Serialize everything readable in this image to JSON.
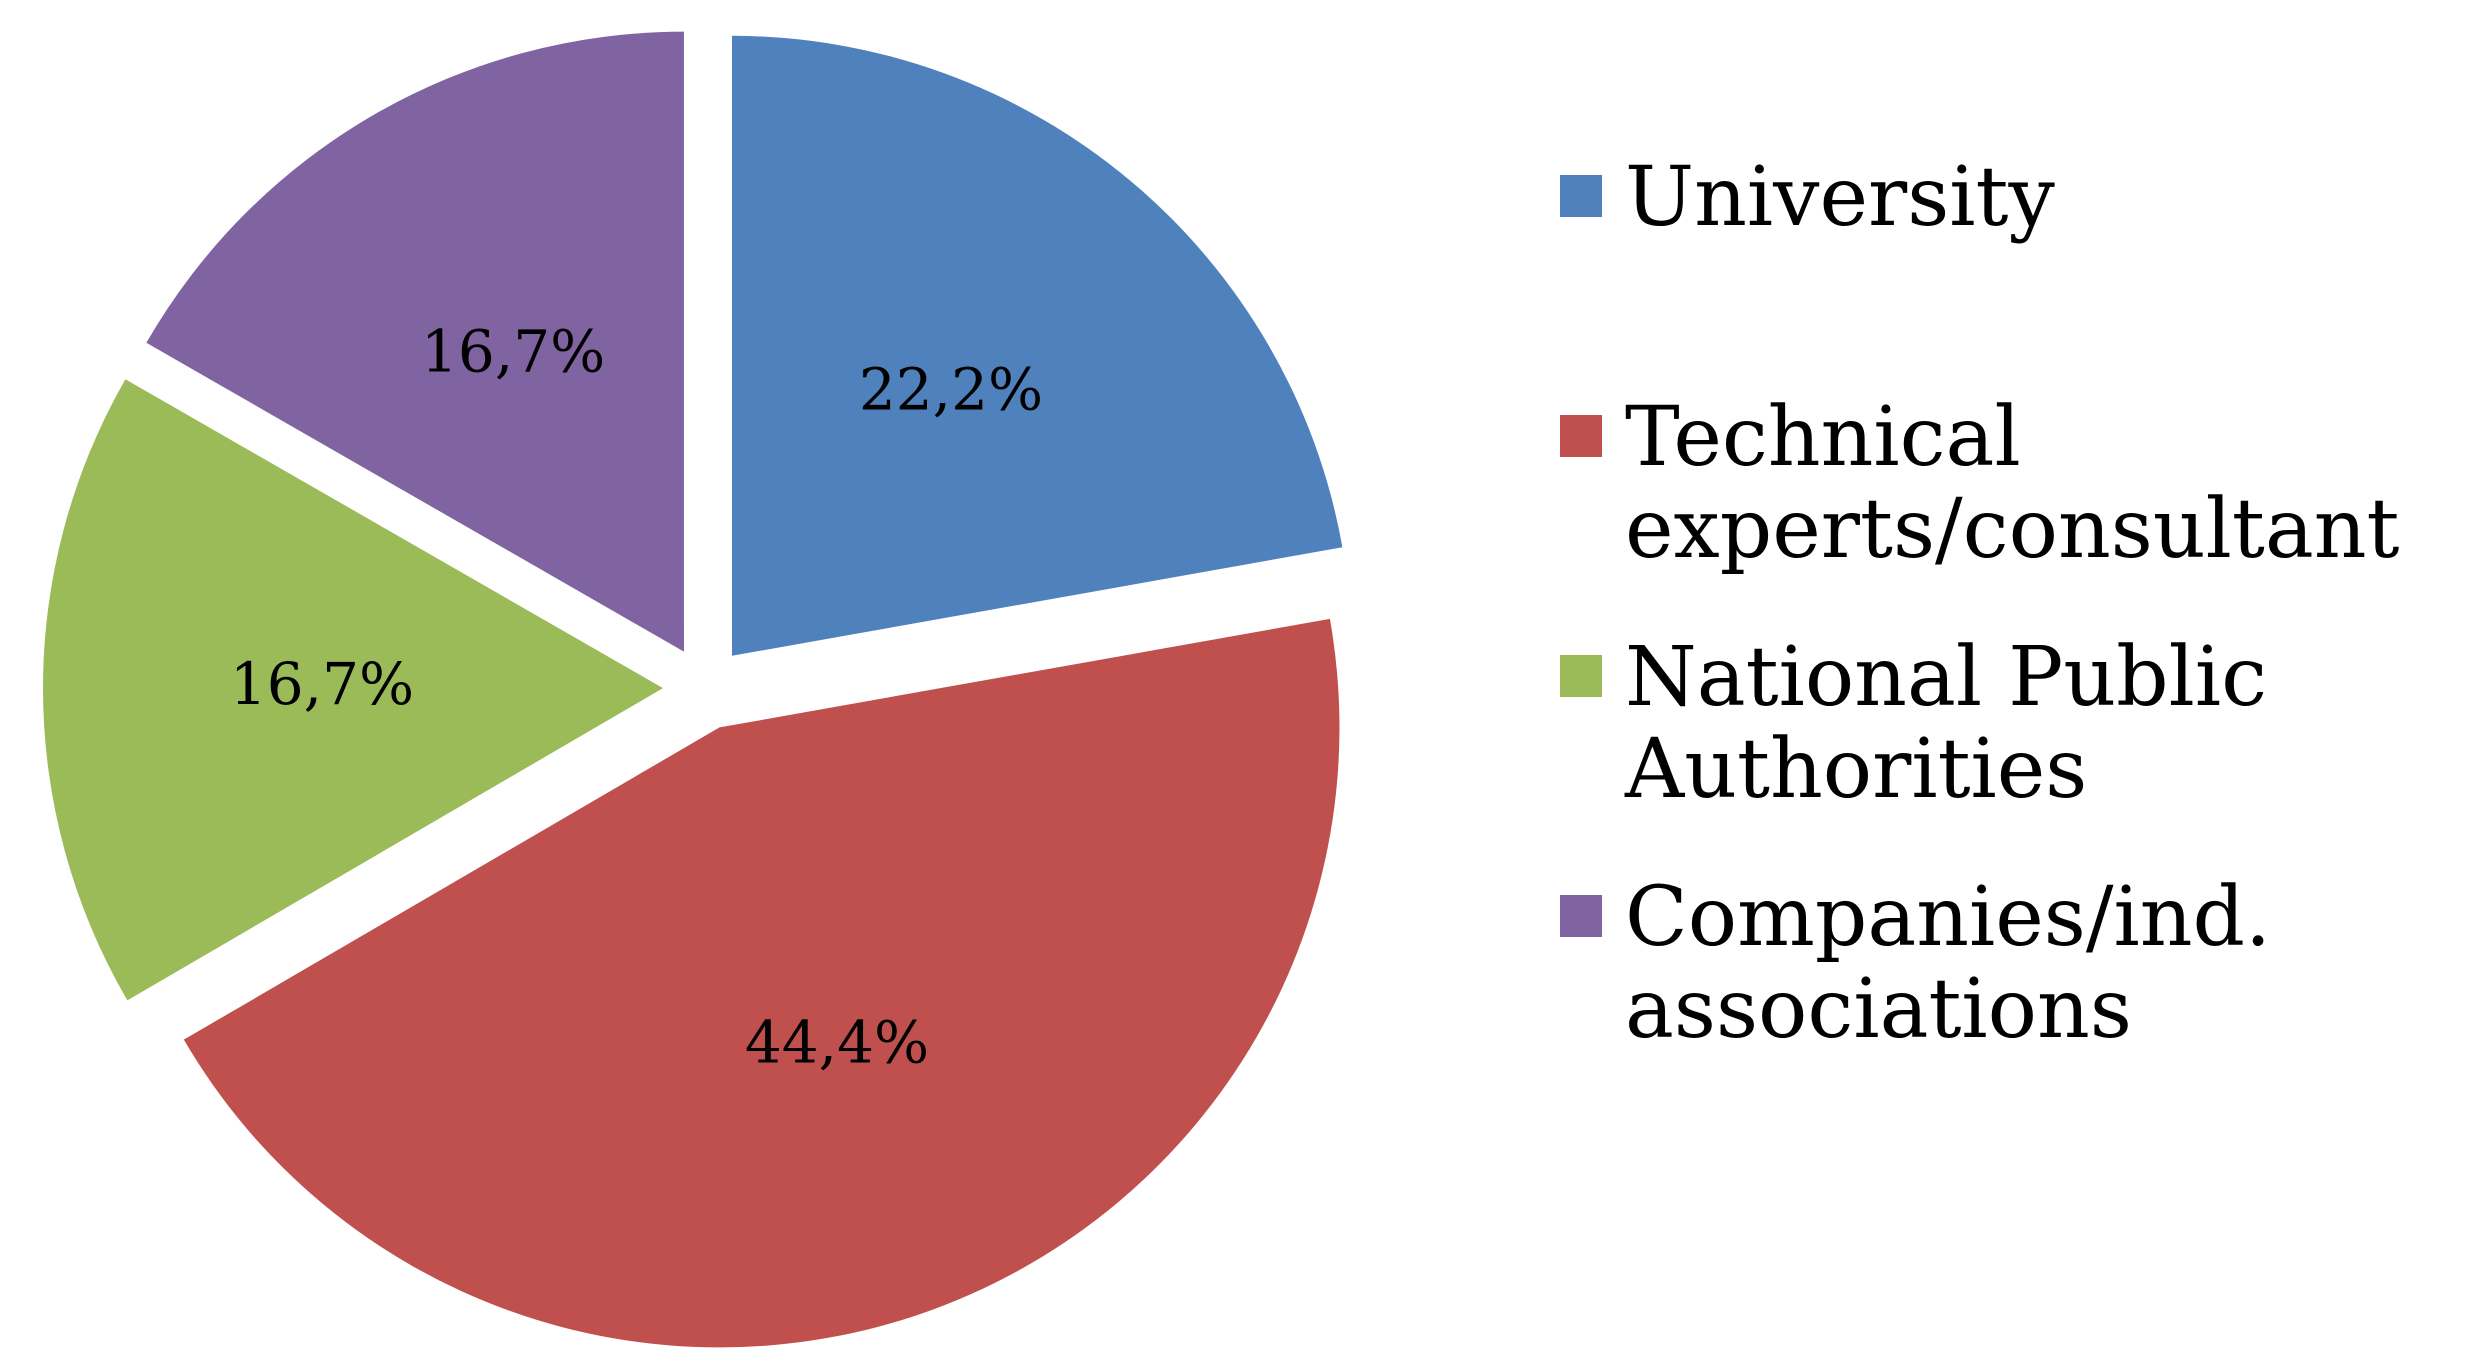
{
  "chart_data": {
    "type": "pie",
    "title": "",
    "series": [
      {
        "name": "University",
        "value": 22.2,
        "label": "22,2%",
        "color": "#4F81BD"
      },
      {
        "name": "Technical experts/consultant",
        "legend_lines": [
          "Technical",
          "experts/consultant"
        ],
        "value": 44.4,
        "label": "44,4%",
        "color": "#C0504D"
      },
      {
        "name": "National Public Authorities",
        "legend_lines": [
          "National Public",
          "Authorities"
        ],
        "value": 16.7,
        "label": "16,7%",
        "color": "#9BBB59"
      },
      {
        "name": "Companies/ind. associations",
        "legend_lines": [
          "Companies/ind.",
          "associations"
        ],
        "value": 16.7,
        "label": "16,7%",
        "color": "#8064A2"
      }
    ],
    "exploded": true,
    "start": "12 o'clock",
    "direction": "clockwise",
    "legend": {
      "position": "right"
    }
  }
}
